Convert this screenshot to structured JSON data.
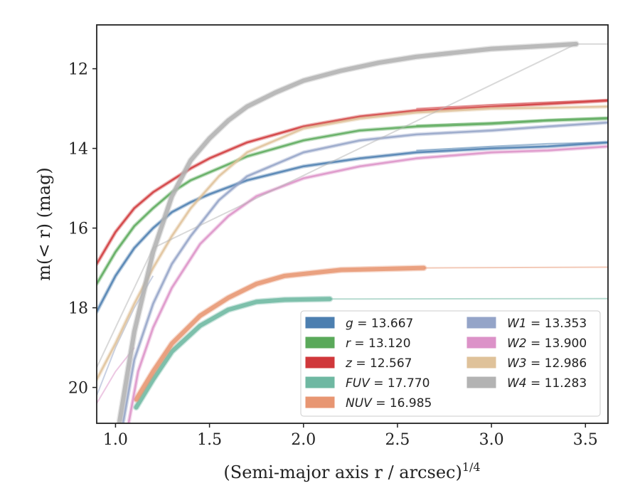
{
  "chart_data": {
    "type": "line",
    "title": "",
    "xlabel": "(Semi-major axis r / arcsec)",
    "xlabel_var": "r",
    "xlabel_exp": "1/4",
    "ylabel": "m(< r) (mag)",
    "xlim": [
      0.9,
      3.62
    ],
    "ylim": [
      20.9,
      10.9
    ],
    "y_inverted": true,
    "xticks": [
      1.0,
      1.5,
      2.0,
      2.5,
      3.0,
      3.5
    ],
    "xtick_labels": [
      "1.0",
      "1.5",
      "2.0",
      "2.5",
      "3.0",
      "3.5"
    ],
    "yticks": [
      12,
      14,
      16,
      18,
      20
    ],
    "ytick_labels": [
      "12",
      "14",
      "16",
      "18",
      "20"
    ],
    "grid": false,
    "legend_position": "bottom-right",
    "legend_columns": 2,
    "series": [
      {
        "name": "g = 13.667",
        "label_var": "g",
        "label_val": "13.667",
        "color": "#4c7fb0",
        "x": [
          0.9,
          1.0,
          1.1,
          1.2,
          1.3,
          1.4,
          1.5,
          1.7,
          2.0,
          2.3,
          2.6,
          3.0,
          3.3,
          3.62
        ],
        "y": [
          18.1,
          17.2,
          16.5,
          16.0,
          15.6,
          15.35,
          15.15,
          14.8,
          14.45,
          14.25,
          14.1,
          14.0,
          13.95,
          13.85
        ],
        "ghost_x": [
          2.6,
          3.0,
          3.3,
          3.62
        ],
        "ghost_y": [
          14.05,
          13.95,
          13.88,
          13.85
        ]
      },
      {
        "name": "r = 13.120",
        "label_var": "r",
        "label_val": "13.120",
        "color": "#5aa95a",
        "x": [
          0.9,
          1.0,
          1.1,
          1.2,
          1.3,
          1.4,
          1.5,
          1.7,
          2.0,
          2.3,
          2.6,
          3.0,
          3.3,
          3.62
        ],
        "y": [
          17.4,
          16.6,
          15.95,
          15.5,
          15.1,
          14.8,
          14.6,
          14.2,
          13.8,
          13.55,
          13.45,
          13.38,
          13.3,
          13.25
        ],
        "ghost_x": [
          2.6,
          3.0,
          3.3,
          3.62
        ],
        "ghost_y": [
          13.42,
          13.35,
          13.28,
          13.22
        ]
      },
      {
        "name": "z = 12.567",
        "label_var": "z",
        "label_val": "12.567",
        "color": "#d0383b",
        "x": [
          0.9,
          1.0,
          1.1,
          1.2,
          1.3,
          1.4,
          1.5,
          1.7,
          2.0,
          2.3,
          2.6,
          3.0,
          3.3,
          3.62
        ],
        "y": [
          16.9,
          16.1,
          15.5,
          15.1,
          14.8,
          14.5,
          14.25,
          13.85,
          13.45,
          13.2,
          13.05,
          12.95,
          12.88,
          12.8
        ],
        "ghost_x": [
          2.6,
          3.0,
          3.3,
          3.62
        ],
        "ghost_y": [
          13.0,
          12.9,
          12.84,
          12.78
        ]
      },
      {
        "name": "FUV = 17.770",
        "label_var": "FUV",
        "label_val": "17.770",
        "color": "#6fb8a2",
        "x": [
          1.11,
          1.2,
          1.3,
          1.45,
          1.6,
          1.75,
          1.9,
          2.14
        ],
        "y": [
          20.5,
          19.8,
          19.1,
          18.45,
          18.05,
          17.85,
          17.8,
          17.78
        ],
        "ghost_x": [
          2.14,
          3.62
        ],
        "ghost_y": [
          17.78,
          17.77
        ]
      },
      {
        "name": "NUV = 16.985",
        "label_var": "NUV",
        "label_val": "16.985",
        "color": "#e89672",
        "x": [
          1.11,
          1.2,
          1.3,
          1.45,
          1.6,
          1.75,
          1.9,
          2.2,
          2.64
        ],
        "y": [
          20.3,
          19.6,
          18.9,
          18.2,
          17.75,
          17.4,
          17.2,
          17.05,
          17.0
        ],
        "ghost_x": [
          2.64,
          3.62
        ],
        "ghost_y": [
          17.0,
          16.98
        ]
      },
      {
        "name": "W1 = 13.353",
        "label_var": "W1",
        "label_val": "13.353",
        "color": "#94a4c8",
        "x": [
          1.04,
          1.1,
          1.2,
          1.3,
          1.4,
          1.55,
          1.7,
          2.0,
          2.3,
          2.6,
          3.0,
          3.3,
          3.62
        ],
        "y": [
          20.9,
          19.3,
          17.9,
          16.9,
          16.2,
          15.3,
          14.7,
          14.1,
          13.8,
          13.65,
          13.55,
          13.45,
          13.35
        ],
        "ghost_x": [
          0.9,
          1.0,
          1.1,
          1.2
        ],
        "ghost_y": [
          20.2,
          19.0,
          18.0,
          17.2
        ]
      },
      {
        "name": "W2 = 13.900",
        "label_var": "W2",
        "label_val": "13.900",
        "color": "#dc92c8",
        "x": [
          1.07,
          1.12,
          1.2,
          1.3,
          1.45,
          1.6,
          1.75,
          2.0,
          2.3,
          2.6,
          3.0,
          3.3,
          3.62
        ],
        "y": [
          20.9,
          19.6,
          18.5,
          17.5,
          16.4,
          15.7,
          15.2,
          14.75,
          14.45,
          14.25,
          14.1,
          14.05,
          13.95
        ],
        "ghost_x": [
          0.9,
          1.0,
          1.1
        ],
        "ghost_y": [
          20.4,
          19.6,
          19.0
        ]
      },
      {
        "name": "W3 = 12.986",
        "label_var": "W3",
        "label_val": "12.986",
        "color": "#dfc29a",
        "x": [
          0.9,
          1.0,
          1.1,
          1.2,
          1.3,
          1.4,
          1.55,
          1.7,
          2.0,
          2.3,
          2.6,
          3.0,
          3.3,
          3.62
        ],
        "y": [
          19.8,
          18.9,
          17.9,
          17.0,
          16.2,
          15.5,
          14.7,
          14.1,
          13.5,
          13.25,
          13.1,
          13.0,
          12.98,
          12.95
        ],
        "ghost_x": [],
        "ghost_y": []
      },
      {
        "name": "W4 = 11.283",
        "label_var": "W4",
        "label_val": "11.283",
        "color": "#b3b3b3",
        "x": [
          1.02,
          1.1,
          1.2,
          1.3,
          1.4,
          1.5,
          1.6,
          1.7,
          1.85,
          2.0,
          2.2,
          2.4,
          2.6,
          2.8,
          3.0,
          3.2,
          3.45
        ],
        "y": [
          20.9,
          18.6,
          16.6,
          15.2,
          14.3,
          13.75,
          13.3,
          12.95,
          12.6,
          12.3,
          12.05,
          11.85,
          11.7,
          11.6,
          11.5,
          11.45,
          11.38
        ],
        "ghost_x": [
          0.9,
          1.0,
          1.1,
          1.2,
          3.45,
          3.62
        ],
        "ghost_y": [
          19.5,
          18.5,
          17.5,
          16.5,
          11.38,
          11.38
        ]
      }
    ]
  }
}
